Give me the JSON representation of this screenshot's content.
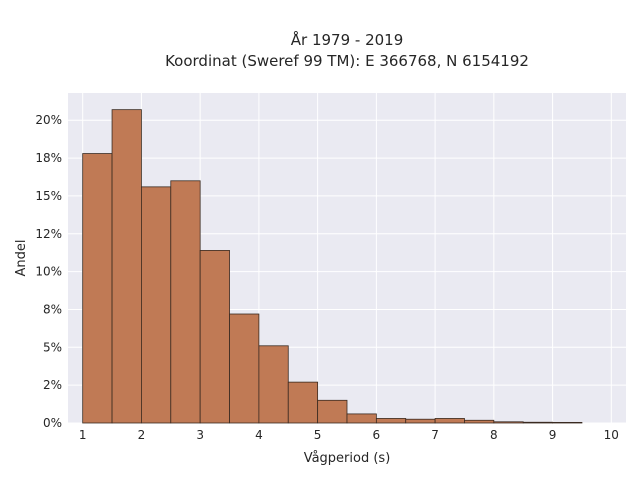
{
  "chart_data": {
    "type": "bar",
    "title_line1": "År 1979 - 2019",
    "title_line2": "Koordinat (Sweref 99 TM): E 366768, N 6154192",
    "xlabel": "Vågperiod (s)",
    "ylabel": "Andel",
    "x_ticks": [
      "1",
      "2",
      "3",
      "4",
      "5",
      "6",
      "7",
      "8",
      "9",
      "10"
    ],
    "y_ticks": [
      "0%",
      "2%",
      "5%",
      "8%",
      "10%",
      "12%",
      "15%",
      "18%",
      "20%"
    ],
    "y_tick_values": [
      0,
      2.5,
      5,
      7.5,
      10,
      12.5,
      15,
      17.5,
      20
    ],
    "xlim": [
      0.75,
      10.25
    ],
    "ylim": [
      0,
      21.8
    ],
    "bin_edges": [
      1.0,
      1.5,
      2.0,
      2.5,
      3.0,
      3.5,
      4.0,
      4.5,
      5.0,
      5.5,
      6.0,
      6.5,
      7.0,
      7.5,
      8.0,
      8.5,
      9.0,
      9.5
    ],
    "values": [
      17.8,
      20.7,
      15.6,
      16.0,
      11.4,
      7.2,
      5.1,
      2.7,
      1.5,
      0.6,
      0.3,
      0.25,
      0.3,
      0.18,
      0.08,
      0.05,
      0.04
    ],
    "bar_color": "#c07a55",
    "bar_edge_color": "#3a2a20",
    "grid": true,
    "plot_bg": "#eaeaf2"
  }
}
